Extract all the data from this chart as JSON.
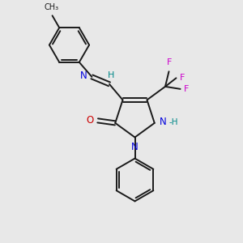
{
  "bg_color": "#e8e8e8",
  "bond_color": "#1a1a1a",
  "N_color": "#0000dd",
  "O_color": "#cc0000",
  "F_color": "#cc00cc",
  "H_color": "#008888",
  "figsize": [
    3.0,
    3.0
  ],
  "dpi": 100,
  "xlim": [
    0,
    10
  ],
  "ylim": [
    0,
    10
  ]
}
